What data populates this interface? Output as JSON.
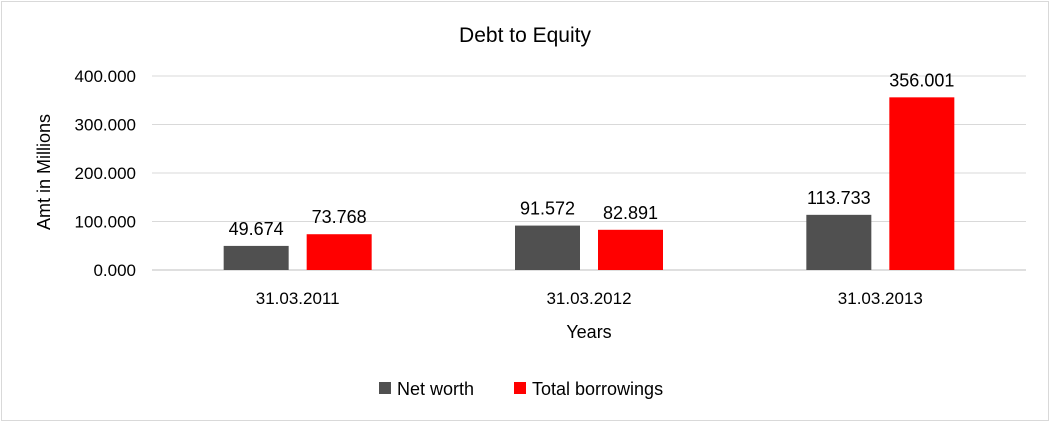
{
  "chart_data": {
    "type": "bar",
    "title": "Debt to Equity",
    "xlabel": "Years",
    "ylabel": "Amt in Millions",
    "categories": [
      "31.03.2011",
      "31.03.2012",
      "31.03.2013"
    ],
    "series": [
      {
        "name": "Net worth",
        "values": [
          49.674,
          91.572,
          113.733
        ],
        "labels": [
          "49.674",
          "91.572",
          "113.733"
        ],
        "color": "#505050"
      },
      {
        "name": "Total borrowings",
        "values": [
          73.768,
          82.891,
          356.001
        ],
        "labels": [
          "73.768",
          "82.891",
          "356.001"
        ],
        "color": "#ff0000"
      }
    ],
    "ylim": [
      0,
      400
    ],
    "yticks": [
      0,
      100,
      200,
      300,
      400
    ],
    "ytick_labels": [
      "0.000",
      "100.000",
      "200.000",
      "300.000",
      "400.000"
    ],
    "grid": true,
    "legend_position": "bottom"
  }
}
